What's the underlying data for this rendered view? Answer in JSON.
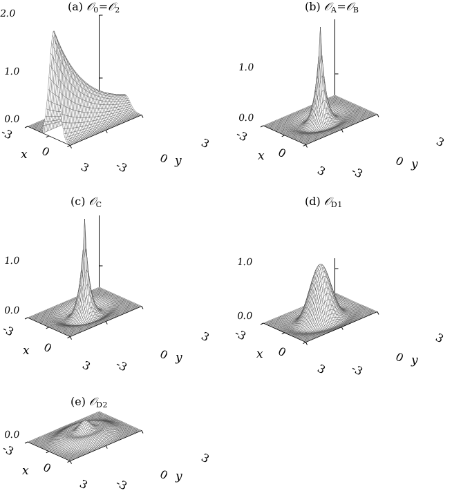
{
  "chart_data": [
    {
      "type": "surface",
      "panel_label": "(a)",
      "symbol_left": "𝒪",
      "sub_left": "0",
      "relation": "=",
      "symbol_right": "𝒪",
      "sub_right": "2",
      "xlabel": "x",
      "ylabel": "y",
      "xlim": [
        -3,
        3
      ],
      "ylim": [
        -3,
        3
      ],
      "x_ticks": [
        "-3",
        "0",
        "3"
      ],
      "y_ticks": [
        "-3",
        "0",
        "3"
      ],
      "z_ticks": [
        "0.0",
        "1.0",
        "2.0"
      ],
      "zlim": [
        0,
        2.0
      ],
      "surface": {
        "kind": "ridge_along_y",
        "peak": 1.9,
        "x_center": 0.7,
        "x_width": 0.9,
        "y_decay": 0.35
      }
    },
    {
      "type": "surface",
      "panel_label": "(b)",
      "symbol_left": "𝒪",
      "sub_left": "A",
      "relation": "=",
      "symbol_right": "𝒪",
      "sub_right": "B",
      "xlabel": "x",
      "ylabel": "y",
      "xlim": [
        -3,
        3
      ],
      "ylim": [
        -3,
        3
      ],
      "x_ticks": [
        "-3",
        "0",
        "3"
      ],
      "y_ticks": [
        "-3",
        "0",
        "3"
      ],
      "z_ticks": [
        "0.0",
        "1.0"
      ],
      "zlim": [
        0,
        1.6
      ],
      "surface": {
        "kind": "sharp_peak",
        "peak": 1.5,
        "width": 0.35,
        "dip": 0.12,
        "dip_r": 1.3
      }
    },
    {
      "type": "surface",
      "panel_label": "(c)",
      "symbol_left": "𝒪",
      "sub_left": "C",
      "relation": "",
      "symbol_right": "",
      "sub_right": "",
      "xlabel": "x",
      "ylabel": "y",
      "xlim": [
        -3,
        3
      ],
      "ylim": [
        -3,
        3
      ],
      "x_ticks": [
        "-3",
        "0",
        "3"
      ],
      "y_ticks": [
        "-3",
        "0",
        "3"
      ],
      "z_ticks": [
        "0.0",
        "1.0"
      ],
      "zlim": [
        0,
        1.6
      ],
      "surface": {
        "kind": "sharp_peak",
        "peak": 1.5,
        "width": 0.33,
        "dip": 0.16,
        "dip_r": 1.3
      }
    },
    {
      "type": "surface",
      "panel_label": "(d)",
      "symbol_left": "𝒪",
      "sub_left": "D1",
      "relation": "",
      "symbol_right": "",
      "sub_right": "",
      "xlabel": "x",
      "ylabel": "y",
      "xlim": [
        -3,
        3
      ],
      "ylim": [
        -3,
        3
      ],
      "x_ticks": [
        "-3",
        "0",
        "3"
      ],
      "y_ticks": [
        "-3",
        "0",
        "3"
      ],
      "z_ticks": [
        "0.0",
        "1.0"
      ],
      "zlim": [
        0,
        1.2
      ],
      "surface": {
        "kind": "broad_peak",
        "peak": 0.9,
        "width": 0.75,
        "dip": 0.06,
        "dip_r": 1.8
      }
    },
    {
      "type": "surface",
      "panel_label": "(e)",
      "symbol_left": "𝒪",
      "sub_left": "D2",
      "relation": "",
      "symbol_right": "",
      "sub_right": "",
      "xlabel": "x",
      "ylabel": "y",
      "xlim": [
        -3,
        3
      ],
      "ylim": [
        -3,
        3
      ],
      "x_ticks": [
        "-3",
        "0",
        "3"
      ],
      "y_ticks": [
        "-3",
        "0",
        "3"
      ],
      "z_ticks": [
        "0.0"
      ],
      "zlim": [
        0,
        0.4
      ],
      "surface": {
        "kind": "small_bump_ring",
        "peak": 0.25,
        "width": 0.5,
        "ring_h": 0.1,
        "ring_r": 1.5
      }
    }
  ]
}
